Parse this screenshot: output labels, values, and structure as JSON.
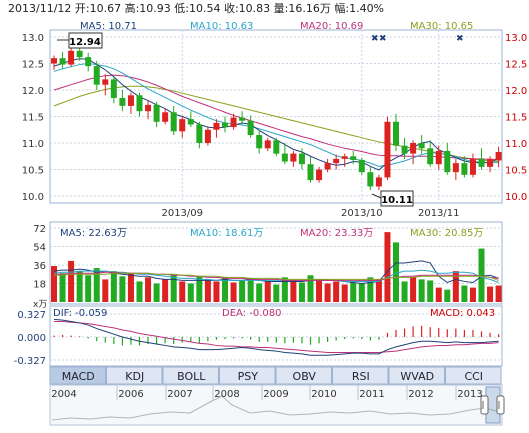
{
  "header": {
    "text": "2013/11/12 开:10.67 高:10.93 低:10.54 收:10.83 量:16.16万 幅:1.40%"
  },
  "price_panel": {
    "ma_labels": [
      {
        "text": "MA5: 10.71",
        "color": "#1f3f7a"
      },
      {
        "text": "MA10: 10.63",
        "color": "#2aa6c8"
      },
      {
        "text": "MA20: 10.69",
        "color": "#c0307a"
      },
      {
        "text": "MA30: 10.65",
        "color": "#8aa020"
      }
    ],
    "y_ticks": [
      "13.0",
      "12.5",
      "12.0",
      "11.5",
      "11.0",
      "10.5",
      "10.0"
    ],
    "x_ticks": [
      "2013/09",
      "2013/10",
      "2013/11"
    ],
    "high_callout": "12.94",
    "low_callout": "10.11"
  },
  "volume_panel": {
    "ma_labels": [
      {
        "text": "MA5: 22.63万",
        "color": "#1f3f7a"
      },
      {
        "text": "MA10: 18.61万",
        "color": "#2aa6c8"
      },
      {
        "text": "MA20: 23.33万",
        "color": "#c0307a"
      },
      {
        "text": "MA30: 20.85万",
        "color": "#8aa020"
      }
    ],
    "y_ticks": [
      "72",
      "54",
      "36",
      "18"
    ],
    "unit": "x万"
  },
  "macd_panel": {
    "labels": [
      {
        "text": "DIF: -0.059",
        "color": "#1f3f7a"
      },
      {
        "text": "DEA: -0.080",
        "color": "#c0307a"
      },
      {
        "text": "MACD: 0.043",
        "color": "#cc0000"
      }
    ],
    "y_ticks": [
      "0.327",
      "0.000",
      "-0.327"
    ]
  },
  "indicator_tabs": [
    "MACD",
    "KDJ",
    "BOLL",
    "PSY",
    "OBV",
    "RSI",
    "WVAD",
    "CCI"
  ],
  "active_tab": "MACD",
  "timeline_years": [
    "2004",
    "2006",
    "2007",
    "2008",
    "2009",
    "2010",
    "2011",
    "2012",
    "2013"
  ],
  "colors": {
    "up": "#dd2222",
    "down": "#22aa22",
    "grid": "#c8d4e6",
    "tab_bg": "#dde6f2"
  },
  "chart_data": [
    {
      "type": "candlestick",
      "title": "",
      "y_range": [
        10.0,
        13.0
      ],
      "x_ticks": [
        "2013/09",
        "2013/10",
        "2013/11"
      ],
      "callouts": {
        "high": 12.94,
        "low": 10.11
      },
      "candles_ohlc": [
        [
          12.5,
          12.65,
          12.38,
          12.6
        ],
        [
          12.6,
          12.72,
          12.4,
          12.48
        ],
        [
          12.48,
          12.8,
          12.44,
          12.74
        ],
        [
          12.74,
          12.94,
          12.55,
          12.62
        ],
        [
          12.62,
          12.7,
          12.35,
          12.45
        ],
        [
          12.45,
          12.55,
          12.0,
          12.1
        ],
        [
          12.1,
          12.3,
          11.9,
          12.2
        ],
        [
          12.2,
          12.25,
          11.75,
          11.85
        ],
        [
          11.85,
          12.0,
          11.6,
          11.7
        ],
        [
          11.7,
          11.95,
          11.55,
          11.9
        ],
        [
          11.9,
          11.95,
          11.5,
          11.6
        ],
        [
          11.6,
          11.8,
          11.45,
          11.72
        ],
        [
          11.72,
          11.78,
          11.3,
          11.4
        ],
        [
          11.4,
          11.65,
          11.35,
          11.58
        ],
        [
          11.58,
          11.7,
          11.15,
          11.22
        ],
        [
          11.22,
          11.5,
          11.1,
          11.45
        ],
        [
          11.45,
          11.6,
          11.3,
          11.35
        ],
        [
          11.35,
          11.4,
          10.9,
          11.0
        ],
        [
          11.0,
          11.3,
          10.95,
          11.25
        ],
        [
          11.25,
          11.45,
          11.1,
          11.38
        ],
        [
          11.38,
          11.5,
          11.2,
          11.3
        ],
        [
          11.3,
          11.55,
          11.25,
          11.48
        ],
        [
          11.48,
          11.6,
          11.35,
          11.42
        ],
        [
          11.42,
          11.52,
          11.1,
          11.15
        ],
        [
          11.15,
          11.25,
          10.8,
          10.9
        ],
        [
          10.9,
          11.1,
          10.85,
          11.05
        ],
        [
          11.05,
          11.1,
          10.75,
          10.8
        ],
        [
          10.8,
          11.0,
          10.6,
          10.65
        ],
        [
          10.65,
          10.85,
          10.55,
          10.8
        ],
        [
          10.8,
          10.9,
          10.5,
          10.6
        ],
        [
          10.6,
          10.75,
          10.25,
          10.3
        ],
        [
          10.3,
          10.55,
          10.25,
          10.5
        ],
        [
          10.5,
          10.7,
          10.45,
          10.62
        ],
        [
          10.62,
          10.78,
          10.5,
          10.7
        ],
        [
          10.7,
          10.8,
          10.55,
          10.75
        ],
        [
          10.75,
          10.85,
          10.6,
          10.68
        ],
        [
          10.68,
          10.72,
          10.4,
          10.45
        ],
        [
          10.45,
          10.55,
          10.11,
          10.18
        ],
        [
          10.18,
          10.4,
          10.11,
          10.35
        ],
        [
          10.35,
          11.5,
          10.3,
          11.4
        ],
        [
          11.4,
          11.55,
          10.85,
          10.95
        ],
        [
          10.95,
          11.1,
          10.7,
          10.8
        ],
        [
          10.8,
          11.05,
          10.6,
          11.0
        ],
        [
          11.0,
          11.15,
          10.8,
          10.9
        ],
        [
          10.9,
          11.05,
          10.55,
          10.6
        ],
        [
          10.6,
          10.95,
          10.5,
          10.85
        ],
        [
          10.85,
          11.0,
          10.4,
          10.45
        ],
        [
          10.45,
          10.7,
          10.3,
          10.62
        ],
        [
          10.62,
          10.75,
          10.35,
          10.4
        ],
        [
          10.4,
          10.8,
          10.35,
          10.7
        ],
        [
          10.7,
          10.9,
          10.5,
          10.55
        ],
        [
          10.55,
          10.75,
          10.45,
          10.7
        ],
        [
          10.67,
          10.93,
          10.54,
          10.83
        ]
      ],
      "ma_lines": {
        "MA5": [
          12.45,
          12.5,
          12.56,
          12.59,
          12.58,
          12.48,
          12.38,
          12.25,
          12.1,
          11.98,
          11.87,
          11.8,
          11.72,
          11.65,
          11.55,
          11.5,
          11.44,
          11.35,
          11.3,
          11.28,
          11.3,
          11.33,
          11.38,
          11.35,
          11.24,
          11.14,
          11.06,
          10.97,
          10.88,
          10.83,
          10.75,
          10.68,
          10.62,
          10.58,
          10.6,
          10.65,
          10.64,
          10.56,
          10.49,
          10.63,
          10.72,
          10.8,
          10.92,
          11.0,
          11.03,
          10.87,
          10.8,
          10.72,
          10.66,
          10.63,
          10.63,
          10.63,
          10.71
        ],
        "MA10": [
          12.35,
          12.4,
          12.44,
          12.48,
          12.5,
          12.48,
          12.45,
          12.4,
          12.32,
          12.22,
          12.12,
          12.02,
          11.94,
          11.86,
          11.78,
          11.7,
          11.62,
          11.55,
          11.48,
          11.42,
          11.38,
          11.36,
          11.34,
          11.31,
          11.27,
          11.22,
          11.17,
          11.12,
          11.07,
          11.02,
          10.97,
          10.9,
          10.83,
          10.76,
          10.72,
          10.7,
          10.67,
          10.62,
          10.56,
          10.58,
          10.62,
          10.66,
          10.72,
          10.78,
          10.82,
          10.8,
          10.78,
          10.74,
          10.69,
          10.65,
          10.64,
          10.63,
          10.63
        ],
        "MA20": [
          12.0,
          12.05,
          12.1,
          12.15,
          12.2,
          12.24,
          12.27,
          12.28,
          12.27,
          12.24,
          12.2,
          12.15,
          12.09,
          12.02,
          11.95,
          11.88,
          11.82,
          11.76,
          11.7,
          11.64,
          11.58,
          11.52,
          11.47,
          11.42,
          11.37,
          11.32,
          11.27,
          11.22,
          11.17,
          11.12,
          11.08,
          11.03,
          10.98,
          10.94,
          10.9,
          10.87,
          10.84,
          10.8,
          10.77,
          10.76,
          10.76,
          10.75,
          10.75,
          10.75,
          10.75,
          10.74,
          10.73,
          10.72,
          10.71,
          10.7,
          10.7,
          10.69,
          10.69
        ],
        "MA30": [
          11.7,
          11.76,
          11.82,
          11.88,
          11.93,
          11.97,
          12.01,
          12.04,
          12.06,
          12.07,
          12.07,
          12.06,
          12.04,
          12.01,
          11.98,
          11.94,
          11.9,
          11.86,
          11.82,
          11.78,
          11.74,
          11.7,
          11.66,
          11.62,
          11.58,
          11.54,
          11.5,
          11.46,
          11.42,
          11.38,
          11.34,
          11.3,
          11.26,
          11.22,
          11.18,
          11.14,
          11.1,
          11.06,
          11.02,
          10.99,
          10.96,
          10.93,
          10.9,
          10.87,
          10.84,
          10.81,
          10.78,
          10.75,
          10.72,
          10.7,
          10.68,
          10.66,
          10.65
        ]
      }
    },
    {
      "type": "bar",
      "title": "",
      "ylabel": "x万",
      "y_range": [
        0,
        72
      ],
      "values": [
        35,
        28,
        40,
        30,
        26,
        33,
        22,
        30,
        25,
        28,
        20,
        24,
        18,
        22,
        26,
        20,
        18,
        25,
        22,
        20,
        24,
        19,
        21,
        23,
        18,
        20,
        17,
        24,
        21,
        19,
        26,
        22,
        18,
        20,
        17,
        19,
        18,
        24,
        22,
        68,
        58,
        20,
        24,
        22,
        21,
        14,
        12,
        30,
        16,
        14,
        52,
        15,
        16
      ],
      "up": [
        1,
        0,
        1,
        0,
        0,
        0,
        1,
        0,
        0,
        1,
        0,
        1,
        0,
        1,
        0,
        1,
        0,
        0,
        1,
        1,
        0,
        1,
        0,
        0,
        0,
        1,
        0,
        0,
        1,
        0,
        0,
        1,
        1,
        1,
        1,
        0,
        0,
        0,
        1,
        1,
        0,
        0,
        1,
        0,
        0,
        1,
        0,
        1,
        0,
        1,
        0,
        1,
        1
      ],
      "ma_lines": {
        "MA5": [
          30,
          31,
          31,
          32,
          31,
          29,
          30,
          28,
          27,
          26,
          25,
          25,
          23,
          22,
          22,
          21,
          21,
          21,
          21,
          21,
          22,
          21,
          21,
          22,
          21,
          20,
          20,
          20,
          20,
          20,
          21,
          22,
          21,
          21,
          20,
          19,
          18,
          19,
          20,
          30,
          38,
          38,
          39,
          40,
          38,
          25,
          19,
          22,
          20,
          19,
          25,
          26,
          23
        ],
        "MA10": [
          28,
          29,
          29,
          30,
          30,
          30,
          30,
          29,
          29,
          28,
          27,
          27,
          26,
          25,
          24,
          23,
          23,
          22,
          22,
          21,
          21,
          21,
          21,
          21,
          21,
          21,
          21,
          21,
          21,
          21,
          21,
          21,
          21,
          21,
          20,
          20,
          20,
          20,
          20,
          24,
          28,
          30,
          30,
          31,
          30,
          28,
          28,
          29,
          29,
          28,
          24,
          22,
          19
        ],
        "MA20": [
          27,
          27,
          28,
          28,
          28,
          28,
          29,
          29,
          28,
          28,
          28,
          28,
          27,
          27,
          26,
          26,
          25,
          25,
          24,
          24,
          23,
          23,
          23,
          22,
          22,
          22,
          22,
          21,
          21,
          21,
          21,
          21,
          21,
          21,
          21,
          21,
          21,
          21,
          21,
          23,
          24,
          25,
          25,
          26,
          26,
          26,
          26,
          26,
          26,
          26,
          25,
          24,
          23
        ],
        "MA30": [
          26,
          26,
          27,
          27,
          27,
          27,
          27,
          28,
          28,
          28,
          28,
          28,
          27,
          27,
          27,
          26,
          26,
          25,
          25,
          25,
          24,
          24,
          24,
          23,
          23,
          23,
          23,
          22,
          22,
          22,
          22,
          22,
          22,
          22,
          22,
          22,
          22,
          22,
          22,
          23,
          24,
          24,
          24,
          25,
          25,
          25,
          25,
          25,
          25,
          25,
          25,
          24,
          21
        ]
      }
    },
    {
      "type": "bar",
      "title": "",
      "y_range": [
        -0.327,
        0.327
      ],
      "values": [
        0.02,
        0.03,
        0.02,
        0.01,
        -0.02,
        -0.06,
        -0.08,
        -0.1,
        -0.12,
        -0.11,
        -0.12,
        -0.1,
        -0.11,
        -0.09,
        -0.1,
        -0.08,
        -0.07,
        -0.09,
        -0.06,
        -0.04,
        -0.03,
        -0.02,
        -0.02,
        -0.04,
        -0.07,
        -0.07,
        -0.08,
        -0.09,
        -0.08,
        -0.09,
        -0.11,
        -0.09,
        -0.07,
        -0.05,
        -0.03,
        -0.02,
        -0.03,
        -0.05,
        -0.04,
        0.06,
        0.1,
        0.12,
        0.15,
        0.16,
        0.14,
        0.13,
        0.11,
        0.12,
        0.1,
        0.1,
        0.08,
        0.06,
        0.04
      ],
      "lines": {
        "DIF": [
          0.25,
          0.24,
          0.22,
          0.2,
          0.17,
          0.12,
          0.08,
          0.04,
          0.0,
          -0.03,
          -0.06,
          -0.08,
          -0.1,
          -0.12,
          -0.14,
          -0.15,
          -0.16,
          -0.18,
          -0.18,
          -0.18,
          -0.17,
          -0.16,
          -0.15,
          -0.16,
          -0.18,
          -0.19,
          -0.2,
          -0.22,
          -0.23,
          -0.24,
          -0.26,
          -0.26,
          -0.26,
          -0.25,
          -0.24,
          -0.23,
          -0.23,
          -0.24,
          -0.24,
          -0.18,
          -0.14,
          -0.11,
          -0.08,
          -0.06,
          -0.06,
          -0.07,
          -0.08,
          -0.07,
          -0.08,
          -0.08,
          -0.08,
          -0.07,
          -0.06
        ],
        "DEA": [
          0.22,
          0.22,
          0.21,
          0.2,
          0.19,
          0.17,
          0.15,
          0.13,
          0.1,
          0.08,
          0.05,
          0.03,
          0.01,
          -0.01,
          -0.03,
          -0.05,
          -0.07,
          -0.09,
          -0.1,
          -0.12,
          -0.13,
          -0.13,
          -0.14,
          -0.14,
          -0.15,
          -0.15,
          -0.16,
          -0.17,
          -0.18,
          -0.19,
          -0.2,
          -0.21,
          -0.22,
          -0.22,
          -0.22,
          -0.22,
          -0.22,
          -0.22,
          -0.22,
          -0.21,
          -0.2,
          -0.18,
          -0.16,
          -0.14,
          -0.13,
          -0.12,
          -0.12,
          -0.11,
          -0.11,
          -0.1,
          -0.09,
          -0.09,
          -0.08
        ]
      }
    }
  ]
}
